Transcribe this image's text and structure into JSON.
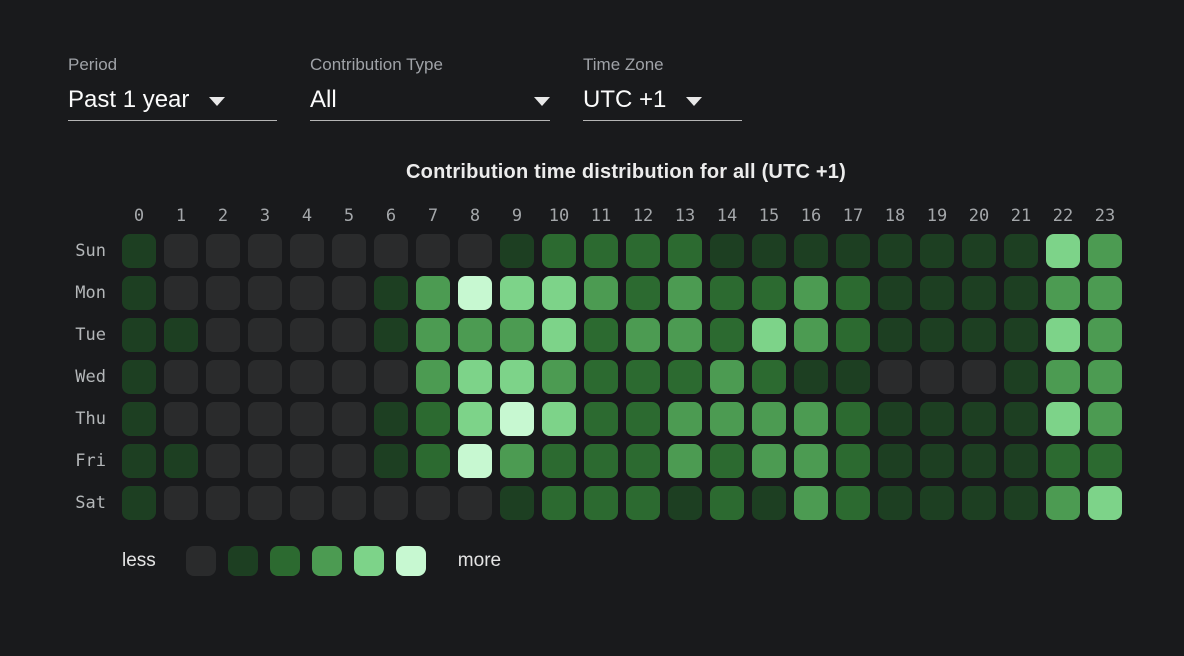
{
  "filters": {
    "period": {
      "label": "Period",
      "value": "Past 1 year"
    },
    "contribution_type": {
      "label": "Contribution Type",
      "value": "All"
    },
    "time_zone": {
      "label": "Time Zone",
      "value": "UTC +1"
    }
  },
  "chart_data": {
    "type": "heatmap",
    "title": "Contribution time distribution for all (UTC +1)",
    "x_labels": [
      "0",
      "1",
      "2",
      "3",
      "4",
      "5",
      "6",
      "7",
      "8",
      "9",
      "10",
      "11",
      "12",
      "13",
      "14",
      "15",
      "16",
      "17",
      "18",
      "19",
      "20",
      "21",
      "22",
      "23"
    ],
    "y_labels": [
      "Sun",
      "Mon",
      "Tue",
      "Wed",
      "Thu",
      "Fri",
      "Sat"
    ],
    "series": [
      {
        "name": "Sun",
        "levels": [
          1,
          0,
          0,
          0,
          0,
          0,
          0,
          0,
          0,
          1,
          2,
          2,
          2,
          2,
          1,
          1,
          1,
          1,
          1,
          1,
          1,
          1,
          4,
          3
        ]
      },
      {
        "name": "Mon",
        "levels": [
          1,
          0,
          0,
          0,
          0,
          0,
          1,
          3,
          5,
          4,
          4,
          3,
          2,
          3,
          2,
          2,
          3,
          2,
          1,
          1,
          1,
          1,
          3,
          3
        ]
      },
      {
        "name": "Tue",
        "levels": [
          1,
          1,
          0,
          0,
          0,
          0,
          1,
          3,
          3,
          3,
          4,
          2,
          3,
          3,
          2,
          4,
          3,
          2,
          1,
          1,
          1,
          1,
          4,
          3
        ]
      },
      {
        "name": "Wed",
        "levels": [
          1,
          0,
          0,
          0,
          0,
          0,
          0,
          3,
          4,
          4,
          3,
          2,
          2,
          2,
          3,
          2,
          1,
          1,
          0,
          0,
          0,
          1,
          3,
          3
        ]
      },
      {
        "name": "Thu",
        "levels": [
          1,
          0,
          0,
          0,
          0,
          0,
          1,
          2,
          4,
          5,
          4,
          2,
          2,
          3,
          3,
          3,
          3,
          2,
          1,
          1,
          1,
          1,
          4,
          3
        ]
      },
      {
        "name": "Fri",
        "levels": [
          1,
          1,
          0,
          0,
          0,
          0,
          1,
          2,
          5,
          3,
          2,
          2,
          2,
          3,
          2,
          3,
          3,
          2,
          1,
          1,
          1,
          1,
          2,
          2
        ]
      },
      {
        "name": "Sat",
        "levels": [
          1,
          0,
          0,
          0,
          0,
          0,
          0,
          0,
          0,
          1,
          2,
          2,
          2,
          1,
          2,
          1,
          3,
          2,
          1,
          1,
          1,
          1,
          3,
          4
        ]
      }
    ],
    "level_colors": [
      "#2a2b2c",
      "#1d3f22",
      "#2c6a30",
      "#4c9b52",
      "#7dd389",
      "#c7f8d1"
    ],
    "legend": {
      "less_label": "less",
      "more_label": "more"
    },
    "background_color": "#191a1c"
  }
}
